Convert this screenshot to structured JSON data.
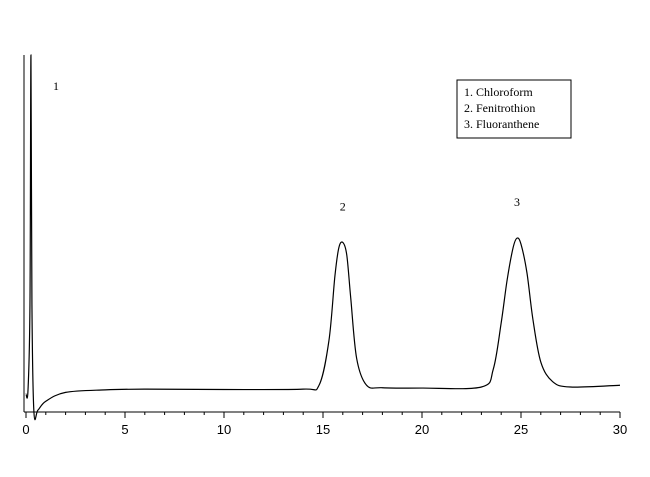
{
  "chart_data": {
    "type": "line",
    "title": "",
    "xlabel": "",
    "ylabel": "",
    "xlim": [
      0,
      30
    ],
    "ylim": [
      0,
      1
    ],
    "grid": false,
    "legend_position": "top-right",
    "x_ticks": [
      {
        "value": 0,
        "label": "0"
      },
      {
        "value": 5,
        "label": "5"
      },
      {
        "value": 10,
        "label": "10"
      },
      {
        "value": 15,
        "label": "15"
      },
      {
        "value": 20,
        "label": "20"
      },
      {
        "value": 25,
        "label": "25"
      },
      {
        "value": 30,
        "label": "30"
      }
    ],
    "legend": [
      "1. Chloroform",
      "2. Fenitrothion",
      "3. Fluoranthene"
    ],
    "peaks": [
      {
        "label": "1",
        "x": 0.25,
        "height": 1.0
      },
      {
        "label": "2",
        "x": 16.0,
        "height": 0.475
      },
      {
        "label": "3",
        "x": 24.8,
        "height": 0.487
      }
    ],
    "series": [
      {
        "x": [
          0,
          0.1,
          0.2,
          0.25,
          0.3,
          0.4,
          0.6,
          1,
          2,
          4,
          6,
          10,
          14,
          14.8,
          15.3,
          15.6,
          15.8,
          16.0,
          16.2,
          16.4,
          16.7,
          17.2,
          18,
          20,
          23,
          23.6,
          24.0,
          24.3,
          24.6,
          24.8,
          25.0,
          25.3,
          25.6,
          26.0,
          26.6,
          27.5,
          30
        ],
        "y": [
          0.05,
          0.06,
          0.3,
          1.0,
          0.3,
          0.0,
          0.005,
          0.03,
          0.055,
          0.062,
          0.064,
          0.063,
          0.064,
          0.075,
          0.2,
          0.38,
          0.46,
          0.475,
          0.44,
          0.32,
          0.15,
          0.075,
          0.068,
          0.067,
          0.07,
          0.12,
          0.25,
          0.37,
          0.46,
          0.487,
          0.47,
          0.39,
          0.26,
          0.14,
          0.085,
          0.07,
          0.075
        ]
      }
    ]
  }
}
